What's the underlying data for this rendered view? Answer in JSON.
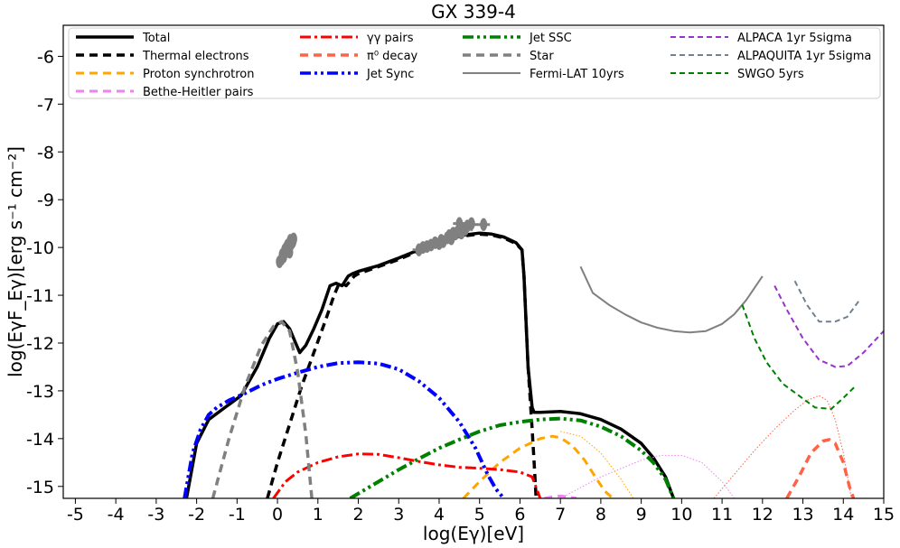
{
  "chart_data": {
    "type": "line",
    "title": "GX 339-4",
    "xlabel": "log(Eγ)[eV]",
    "ylabel": "log(EγF_Eγ)[erg s⁻¹ cm⁻²]",
    "xlim": [
      -5.3,
      15
    ],
    "ylim": [
      -15.25,
      -5.35
    ],
    "xticks": [
      -5,
      -4,
      -3,
      -2,
      -1,
      0,
      1,
      2,
      3,
      4,
      5,
      6,
      7,
      8,
      9,
      10,
      11,
      12,
      13,
      14,
      15
    ],
    "yticks": [
      -15,
      -14,
      -13,
      -12,
      -11,
      -10,
      -9,
      -8,
      -7,
      -6
    ],
    "legend_position": "top",
    "series": [
      {
        "name": "Total",
        "color": "#000000",
        "dash": "solid",
        "width": 3.5,
        "x": [
          -2.25,
          -2.0,
          -1.7,
          -1.3,
          -0.9,
          -0.5,
          -0.2,
          0.0,
          0.15,
          0.3,
          0.45,
          0.55,
          0.6,
          0.7,
          0.9,
          1.1,
          1.3,
          1.45,
          1.6,
          1.75,
          1.85,
          2.0,
          2.5,
          3.0,
          3.5,
          4.0,
          4.5,
          5.0,
          5.3,
          5.6,
          5.9,
          6.05,
          6.1,
          6.2,
          6.3,
          6.35,
          6.5,
          7.0,
          7.5,
          8.0,
          8.5,
          9.0,
          9.3,
          9.6,
          9.8
        ],
        "y": [
          -15.25,
          -14.1,
          -13.6,
          -13.35,
          -13.1,
          -12.5,
          -11.9,
          -11.6,
          -11.55,
          -11.7,
          -12.0,
          -12.2,
          -12.15,
          -12.05,
          -11.7,
          -11.3,
          -10.8,
          -10.75,
          -10.8,
          -10.6,
          -10.55,
          -10.5,
          -10.38,
          -10.22,
          -10.05,
          -9.88,
          -9.75,
          -9.7,
          -9.72,
          -9.78,
          -9.9,
          -10.05,
          -10.6,
          -12.5,
          -13.35,
          -13.45,
          -13.45,
          -13.43,
          -13.48,
          -13.6,
          -13.8,
          -14.1,
          -14.4,
          -14.8,
          -15.25
        ]
      },
      {
        "name": "Thermal electrons",
        "color": "#000000",
        "dash": "9,6",
        "width": 3.5,
        "x": [
          -0.25,
          0.0,
          0.3,
          0.6,
          0.9,
          1.2,
          1.4,
          1.5,
          1.6,
          1.7,
          1.8,
          1.9,
          2.0,
          2.5,
          3.0,
          3.5,
          4.0,
          4.5,
          5.0,
          5.3,
          5.6,
          5.9,
          6.05,
          6.1,
          6.2,
          6.3,
          6.35,
          6.4
        ],
        "y": [
          -15.25,
          -14.5,
          -13.7,
          -12.9,
          -12.2,
          -11.5,
          -11.0,
          -10.8,
          -10.75,
          -10.8,
          -10.7,
          -10.6,
          -10.55,
          -10.4,
          -10.25,
          -10.07,
          -9.9,
          -9.77,
          -9.72,
          -9.74,
          -9.8,
          -9.92,
          -10.05,
          -10.6,
          -12.5,
          -13.8,
          -14.5,
          -15.25
        ]
      },
      {
        "name": "Proton synchrotron",
        "color": "#FFA500",
        "dash": "9,6",
        "width": 3,
        "x": [
          4.6,
          5.0,
          5.5,
          6.0,
          6.5,
          6.8,
          7.0,
          7.3,
          7.6,
          7.9,
          8.1,
          8.3
        ],
        "y": [
          -15.25,
          -14.9,
          -14.5,
          -14.2,
          -14.0,
          -13.95,
          -13.98,
          -14.15,
          -14.45,
          -14.85,
          -15.1,
          -15.25
        ],
        "ext_x": [
          7.0,
          7.5,
          8.0,
          8.5,
          8.8
        ],
        "ext_y": [
          -13.85,
          -13.95,
          -14.3,
          -14.85,
          -15.25
        ]
      },
      {
        "name": "Bethe-Heitler pairs",
        "color": "#EE82EE",
        "dash": "9,6",
        "width": 3,
        "x": [
          6.6,
          6.8,
          7.0,
          7.2,
          7.4
        ],
        "y": [
          -15.25,
          -15.22,
          -15.2,
          -15.22,
          -15.25
        ],
        "ext_x": [
          7.0,
          8.0,
          9.0,
          9.5,
          10.0,
          10.5,
          11.0,
          11.3
        ],
        "ext_y": [
          -15.25,
          -14.8,
          -14.45,
          -14.35,
          -14.35,
          -14.5,
          -14.9,
          -15.25
        ]
      },
      {
        "name": "γγ pairs",
        "color": "#FF0000",
        "dash": "12,4,3,4",
        "width": 3,
        "x": [
          -0.1,
          0.2,
          0.5,
          1.0,
          1.5,
          2.0,
          2.5,
          3.0,
          3.5,
          4.0,
          4.5,
          5.0,
          5.5,
          6.0,
          6.3,
          6.5
        ],
        "y": [
          -15.25,
          -14.9,
          -14.7,
          -14.5,
          -14.38,
          -14.32,
          -14.33,
          -14.4,
          -14.48,
          -14.55,
          -14.6,
          -14.62,
          -14.65,
          -14.7,
          -14.8,
          -15.25
        ]
      },
      {
        "name": "π⁰ decay",
        "color": "#FF6347",
        "dash": "9,6",
        "width": 3.5,
        "x": [
          12.6,
          12.9,
          13.2,
          13.5,
          13.65,
          13.8,
          14.0,
          14.15,
          14.25
        ],
        "y": [
          -15.25,
          -14.8,
          -14.3,
          -14.05,
          -14.02,
          -14.1,
          -14.5,
          -15.0,
          -15.25
        ],
        "ext_x": [
          10.8,
          11.3,
          11.8,
          12.3,
          12.8,
          13.1,
          13.4,
          13.6,
          13.8,
          14.0,
          14.2
        ],
        "ext_y": [
          -15.25,
          -14.75,
          -14.25,
          -13.8,
          -13.4,
          -13.2,
          -13.1,
          -13.2,
          -13.6,
          -14.3,
          -15.25
        ]
      },
      {
        "name": "Jet Sync",
        "color": "#0000FF",
        "dash": "12,4,3,4,3,4",
        "width": 4,
        "x": [
          -2.3,
          -2.1,
          -1.9,
          -1.7,
          -1.5,
          -1.2,
          -0.8,
          -0.4,
          0.0,
          0.5,
          1.0,
          1.5,
          2.0,
          2.5,
          3.0,
          3.5,
          4.0,
          4.5,
          4.9,
          5.2,
          5.4,
          5.6
        ],
        "y": [
          -15.25,
          -14.3,
          -13.8,
          -13.5,
          -13.35,
          -13.2,
          -13.05,
          -12.88,
          -12.75,
          -12.62,
          -12.5,
          -12.42,
          -12.4,
          -12.43,
          -12.55,
          -12.8,
          -13.15,
          -13.65,
          -14.2,
          -14.75,
          -15.05,
          -15.25
        ]
      },
      {
        "name": "Jet SSC",
        "color": "#008000",
        "dash": "12,4,3,4,3,4",
        "width": 4,
        "x": [
          1.8,
          2.5,
          3.0,
          3.5,
          4.0,
          4.5,
          5.0,
          5.5,
          6.0,
          6.5,
          7.0,
          7.5,
          8.0,
          8.5,
          9.0,
          9.3,
          9.6,
          9.8
        ],
        "y": [
          -15.25,
          -14.9,
          -14.65,
          -14.42,
          -14.2,
          -14.02,
          -13.85,
          -13.72,
          -13.65,
          -13.6,
          -13.58,
          -13.62,
          -13.75,
          -13.95,
          -14.25,
          -14.5,
          -14.85,
          -15.25
        ]
      },
      {
        "name": "Star",
        "color": "#808080",
        "dash": "9,6",
        "width": 3.5,
        "x": [
          -1.6,
          -1.2,
          -0.8,
          -0.4,
          -0.1,
          0.1,
          0.3,
          0.5,
          0.7,
          0.85
        ],
        "y": [
          -15.25,
          -14.0,
          -12.9,
          -12.05,
          -11.65,
          -11.55,
          -11.75,
          -12.6,
          -13.9,
          -15.25
        ]
      },
      {
        "name": "Fermi-LAT 10yrs",
        "color": "#808080",
        "dash": "solid",
        "width": 2,
        "x": [
          7.5,
          7.8,
          8.2,
          8.6,
          9.0,
          9.4,
          9.8,
          10.2,
          10.6,
          11.0,
          11.3,
          11.6,
          12.0
        ],
        "y": [
          -10.4,
          -10.95,
          -11.2,
          -11.4,
          -11.57,
          -11.68,
          -11.75,
          -11.78,
          -11.75,
          -11.6,
          -11.4,
          -11.1,
          -10.6
        ]
      },
      {
        "name": "ALPACA 1yr 5sigma",
        "color": "#9932CC",
        "dash": "6,4",
        "width": 2,
        "x": [
          12.3,
          12.6,
          13.0,
          13.4,
          13.8,
          14.1,
          14.5,
          15.0
        ],
        "y": [
          -10.8,
          -11.3,
          -11.9,
          -12.35,
          -12.5,
          -12.48,
          -12.2,
          -11.75
        ]
      },
      {
        "name": "ALPAQUITA 1yr 5sigma",
        "color": "#708090",
        "dash": "6,4",
        "width": 2,
        "x": [
          12.8,
          13.1,
          13.4,
          13.8,
          14.1,
          14.4
        ],
        "y": [
          -10.7,
          -11.2,
          -11.55,
          -11.55,
          -11.45,
          -11.1
        ]
      },
      {
        "name": "SWGO 5yrs",
        "color": "#008000",
        "dash": "6,4",
        "width": 2,
        "x": [
          11.5,
          11.8,
          12.1,
          12.5,
          12.9,
          13.3,
          13.7,
          14.0,
          14.3
        ],
        "y": [
          -11.2,
          -11.9,
          -12.4,
          -12.85,
          -13.1,
          -13.35,
          -13.38,
          -13.15,
          -12.9
        ]
      }
    ],
    "markers": {
      "color": "#808080",
      "cluster1": {
        "x": [
          0.05,
          0.1,
          0.12,
          0.15,
          0.18,
          0.2,
          0.22,
          0.25,
          0.28,
          0.3,
          0.3,
          0.32,
          0.35,
          0.38,
          0.4
        ],
        "y": [
          -10.3,
          -10.25,
          -10.15,
          -10.2,
          -10.05,
          -10.1,
          -10.0,
          -9.95,
          -10.02,
          -9.9,
          -10.1,
          -9.85,
          -9.92,
          -9.88,
          -9.82
        ]
      },
      "cluster2": {
        "x": [
          3.5,
          3.6,
          3.7,
          3.8,
          3.9,
          4.0,
          4.05,
          4.1,
          4.2,
          4.25,
          4.3,
          4.35,
          4.4,
          4.45,
          4.5,
          4.55,
          4.6,
          4.65,
          4.7,
          4.5,
          4.8,
          5.1
        ],
        "y": [
          -10.05,
          -10.0,
          -9.98,
          -9.95,
          -9.9,
          -9.92,
          -9.85,
          -9.88,
          -9.8,
          -9.75,
          -9.82,
          -9.7,
          -9.72,
          -9.68,
          -9.65,
          -9.7,
          -9.6,
          -9.62,
          -9.55,
          -9.5,
          -9.5,
          -9.52
        ]
      },
      "plus_x": [
        3.5,
        4.5,
        4.8,
        5.1
      ],
      "plus_y": [
        -10.05,
        -9.5,
        -9.52,
        -9.52
      ]
    },
    "legend": [
      {
        "label": "Total",
        "series": 0
      },
      {
        "label": "Thermal electrons",
        "series": 1
      },
      {
        "label": "Proton synchrotron",
        "series": 2
      },
      {
        "label": "Bethe-Heitler pairs",
        "series": 3
      },
      {
        "label": "γγ pairs",
        "series": 4
      },
      {
        "label": "π⁰ decay",
        "series": 5
      },
      {
        "label": "Jet Sync",
        "series": 6
      },
      {
        "label": "Jet SSC",
        "series": 7
      },
      {
        "label": "Star",
        "series": 8
      },
      {
        "label": "Fermi-LAT 10yrs",
        "series": 9
      },
      {
        "label": "ALPACA 1yr 5sigma",
        "series": 10
      },
      {
        "label": "ALPAQUITA 1yr 5sigma",
        "series": 11
      },
      {
        "label": "SWGO 5yrs",
        "series": 12
      }
    ]
  }
}
